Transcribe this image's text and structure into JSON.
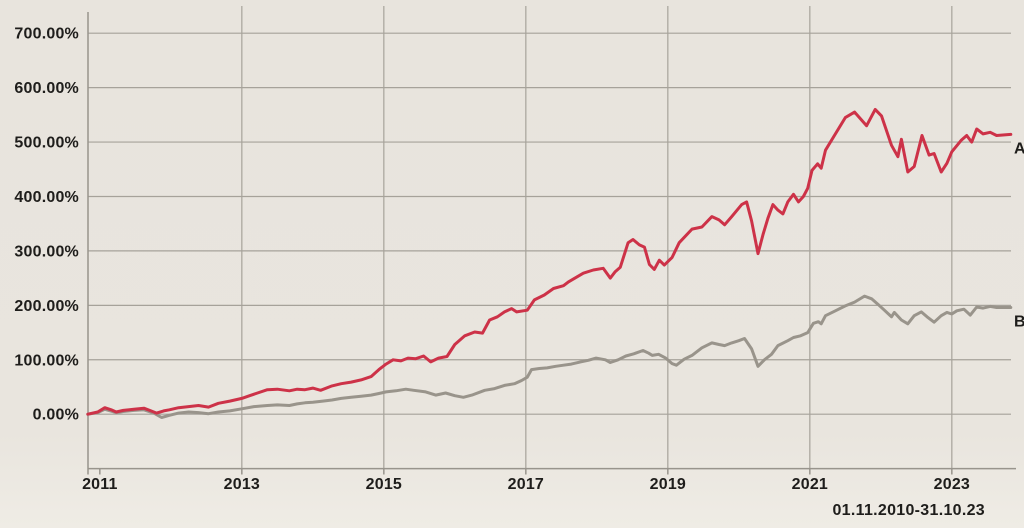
{
  "colors": {
    "background": "#e9e5de",
    "gridline": "#a6a29a",
    "axis": "#98948c",
    "text": "#1e1d1b",
    "series_a": "#cd3248",
    "series_b": "#99948b"
  },
  "chart_data": {
    "type": "line",
    "title": "",
    "period_label": "01.11.2010-31.10.23",
    "grid": true,
    "legend_position": "line-end-right",
    "x_axis": {
      "range": [
        2010.8333,
        2023.8333
      ],
      "tick_years": [
        2011,
        2013,
        2015,
        2017,
        2019,
        2021,
        2023
      ],
      "gridline_years": [
        2013,
        2015,
        2017,
        2019,
        2021,
        2023
      ]
    },
    "y_axis": {
      "range_drawn": [
        -100,
        700
      ],
      "ticks": [
        {
          "value": 0,
          "label": "0.00%"
        },
        {
          "value": 100,
          "label": "100.00%"
        },
        {
          "value": 200,
          "label": "200.00%"
        },
        {
          "value": 300,
          "label": "300.00%"
        },
        {
          "value": 400,
          "label": "400.00%"
        },
        {
          "value": 500,
          "label": "500.00%"
        },
        {
          "value": 600,
          "label": "600.00%"
        },
        {
          "value": 700,
          "label": "700.00%"
        }
      ]
    },
    "series": [
      {
        "name": "B",
        "color": "#99948b",
        "points": [
          [
            2010.83,
            0
          ],
          [
            2010.97,
            3
          ],
          [
            2011.07,
            9
          ],
          [
            2011.23,
            3
          ],
          [
            2011.33,
            5
          ],
          [
            2011.48,
            7
          ],
          [
            2011.62,
            8
          ],
          [
            2011.76,
            2
          ],
          [
            2011.87,
            -6
          ],
          [
            2011.98,
            -2
          ],
          [
            2012.11,
            2
          ],
          [
            2012.25,
            4
          ],
          [
            2012.39,
            3
          ],
          [
            2012.53,
            1
          ],
          [
            2012.67,
            4
          ],
          [
            2012.83,
            6
          ],
          [
            2013.0,
            10
          ],
          [
            2013.17,
            14
          ],
          [
            2013.36,
            16
          ],
          [
            2013.5,
            17
          ],
          [
            2013.67,
            16
          ],
          [
            2013.78,
            19
          ],
          [
            2013.89,
            21
          ],
          [
            2014.0,
            22
          ],
          [
            2014.14,
            24
          ],
          [
            2014.27,
            26
          ],
          [
            2014.4,
            29
          ],
          [
            2014.54,
            31
          ],
          [
            2014.68,
            33
          ],
          [
            2014.82,
            35
          ],
          [
            2014.93,
            38
          ],
          [
            2015.03,
            41
          ],
          [
            2015.17,
            43
          ],
          [
            2015.31,
            46
          ],
          [
            2015.42,
            44
          ],
          [
            2015.59,
            41
          ],
          [
            2015.73,
            35
          ],
          [
            2015.87,
            39
          ],
          [
            2016.0,
            34
          ],
          [
            2016.12,
            31
          ],
          [
            2016.24,
            35
          ],
          [
            2016.42,
            44
          ],
          [
            2016.56,
            47
          ],
          [
            2016.7,
            53
          ],
          [
            2016.84,
            56
          ],
          [
            2016.94,
            62
          ],
          [
            2017.02,
            68
          ],
          [
            2017.08,
            82
          ],
          [
            2017.19,
            84
          ],
          [
            2017.3,
            85
          ],
          [
            2017.42,
            88
          ],
          [
            2017.53,
            90
          ],
          [
            2017.64,
            92
          ],
          [
            2017.77,
            96
          ],
          [
            2017.88,
            99
          ],
          [
            2017.99,
            103
          ],
          [
            2018.12,
            100
          ],
          [
            2018.19,
            95
          ],
          [
            2018.3,
            100
          ],
          [
            2018.41,
            107
          ],
          [
            2018.52,
            111
          ],
          [
            2018.65,
            117
          ],
          [
            2018.73,
            112
          ],
          [
            2018.78,
            108
          ],
          [
            2018.87,
            110
          ],
          [
            2018.97,
            103
          ],
          [
            2019.06,
            93
          ],
          [
            2019.12,
            90
          ],
          [
            2019.23,
            101
          ],
          [
            2019.34,
            108
          ],
          [
            2019.48,
            122
          ],
          [
            2019.62,
            131
          ],
          [
            2019.72,
            128
          ],
          [
            2019.8,
            126
          ],
          [
            2019.9,
            131
          ],
          [
            2020.0,
            135
          ],
          [
            2020.08,
            139
          ],
          [
            2020.18,
            120
          ],
          [
            2020.27,
            88
          ],
          [
            2020.36,
            100
          ],
          [
            2020.46,
            110
          ],
          [
            2020.55,
            126
          ],
          [
            2020.69,
            135
          ],
          [
            2020.77,
            141
          ],
          [
            2020.87,
            144
          ],
          [
            2020.97,
            150
          ],
          [
            2021.05,
            167
          ],
          [
            2021.12,
            170
          ],
          [
            2021.16,
            166
          ],
          [
            2021.22,
            181
          ],
          [
            2021.36,
            190
          ],
          [
            2021.5,
            199
          ],
          [
            2021.63,
            206
          ],
          [
            2021.77,
            217
          ],
          [
            2021.87,
            212
          ],
          [
            2021.95,
            203
          ],
          [
            2022.05,
            191
          ],
          [
            2022.15,
            179
          ],
          [
            2022.19,
            187
          ],
          [
            2022.29,
            173
          ],
          [
            2022.38,
            166
          ],
          [
            2022.47,
            181
          ],
          [
            2022.57,
            188
          ],
          [
            2022.65,
            179
          ],
          [
            2022.75,
            169
          ],
          [
            2022.85,
            181
          ],
          [
            2022.93,
            187
          ],
          [
            2023.0,
            184
          ],
          [
            2023.07,
            190
          ],
          [
            2023.17,
            193
          ],
          [
            2023.26,
            182
          ],
          [
            2023.35,
            197
          ],
          [
            2023.44,
            195
          ],
          [
            2023.54,
            198
          ],
          [
            2023.63,
            196
          ],
          [
            2023.83,
            196
          ]
        ]
      },
      {
        "name": "A",
        "color": "#cd3248",
        "points": [
          [
            2010.83,
            0
          ],
          [
            2010.97,
            4
          ],
          [
            2011.07,
            12
          ],
          [
            2011.16,
            8
          ],
          [
            2011.23,
            4
          ],
          [
            2011.33,
            7
          ],
          [
            2011.48,
            9
          ],
          [
            2011.62,
            11
          ],
          [
            2011.72,
            6
          ],
          [
            2011.8,
            2
          ],
          [
            2011.9,
            6
          ],
          [
            2011.98,
            8
          ],
          [
            2012.11,
            12
          ],
          [
            2012.25,
            14
          ],
          [
            2012.39,
            16
          ],
          [
            2012.53,
            13
          ],
          [
            2012.67,
            20
          ],
          [
            2012.83,
            24
          ],
          [
            2013.0,
            29
          ],
          [
            2013.11,
            34
          ],
          [
            2013.22,
            39
          ],
          [
            2013.36,
            45
          ],
          [
            2013.5,
            46
          ],
          [
            2013.67,
            43
          ],
          [
            2013.78,
            46
          ],
          [
            2013.89,
            45
          ],
          [
            2014.0,
            48
          ],
          [
            2014.11,
            44
          ],
          [
            2014.27,
            52
          ],
          [
            2014.4,
            56
          ],
          [
            2014.54,
            59
          ],
          [
            2014.68,
            63
          ],
          [
            2014.82,
            69
          ],
          [
            2014.93,
            82
          ],
          [
            2015.03,
            92
          ],
          [
            2015.13,
            100
          ],
          [
            2015.24,
            98
          ],
          [
            2015.34,
            103
          ],
          [
            2015.45,
            102
          ],
          [
            2015.56,
            107
          ],
          [
            2015.66,
            96
          ],
          [
            2015.77,
            103
          ],
          [
            2015.89,
            106
          ],
          [
            2016.0,
            128
          ],
          [
            2016.14,
            144
          ],
          [
            2016.28,
            151
          ],
          [
            2016.39,
            149
          ],
          [
            2016.49,
            173
          ],
          [
            2016.6,
            179
          ],
          [
            2016.7,
            188
          ],
          [
            2016.8,
            194
          ],
          [
            2016.87,
            188
          ],
          [
            2017.02,
            191
          ],
          [
            2017.12,
            210
          ],
          [
            2017.26,
            219
          ],
          [
            2017.39,
            231
          ],
          [
            2017.53,
            236
          ],
          [
            2017.6,
            243
          ],
          [
            2017.81,
            259
          ],
          [
            2017.95,
            265
          ],
          [
            2018.09,
            268
          ],
          [
            2018.19,
            250
          ],
          [
            2018.26,
            262
          ],
          [
            2018.33,
            270
          ],
          [
            2018.44,
            315
          ],
          [
            2018.51,
            321
          ],
          [
            2018.6,
            311
          ],
          [
            2018.67,
            307
          ],
          [
            2018.74,
            275
          ],
          [
            2018.81,
            266
          ],
          [
            2018.88,
            283
          ],
          [
            2018.95,
            274
          ],
          [
            2019.06,
            288
          ],
          [
            2019.16,
            315
          ],
          [
            2019.34,
            340
          ],
          [
            2019.48,
            344
          ],
          [
            2019.62,
            363
          ],
          [
            2019.72,
            357
          ],
          [
            2019.8,
            348
          ],
          [
            2019.9,
            363
          ],
          [
            2020.04,
            385
          ],
          [
            2020.11,
            390
          ],
          [
            2020.18,
            355
          ],
          [
            2020.27,
            295
          ],
          [
            2020.34,
            330
          ],
          [
            2020.41,
            360
          ],
          [
            2020.48,
            385
          ],
          [
            2020.55,
            375
          ],
          [
            2020.62,
            368
          ],
          [
            2020.69,
            390
          ],
          [
            2020.77,
            404
          ],
          [
            2020.84,
            390
          ],
          [
            2020.91,
            400
          ],
          [
            2020.97,
            415
          ],
          [
            2021.03,
            448
          ],
          [
            2021.11,
            460
          ],
          [
            2021.16,
            452
          ],
          [
            2021.22,
            485
          ],
          [
            2021.36,
            515
          ],
          [
            2021.5,
            545
          ],
          [
            2021.63,
            555
          ],
          [
            2021.8,
            530
          ],
          [
            2021.92,
            560
          ],
          [
            2022.01,
            548
          ],
          [
            2022.15,
            494
          ],
          [
            2022.24,
            473
          ],
          [
            2022.29,
            505
          ],
          [
            2022.38,
            445
          ],
          [
            2022.47,
            455
          ],
          [
            2022.58,
            512
          ],
          [
            2022.68,
            476
          ],
          [
            2022.75,
            479
          ],
          [
            2022.85,
            445
          ],
          [
            2022.93,
            461
          ],
          [
            2023.0,
            482
          ],
          [
            2023.13,
            503
          ],
          [
            2023.21,
            512
          ],
          [
            2023.28,
            500
          ],
          [
            2023.35,
            524
          ],
          [
            2023.44,
            515
          ],
          [
            2023.54,
            518
          ],
          [
            2023.63,
            512
          ],
          [
            2023.83,
            514
          ]
        ]
      }
    ]
  }
}
